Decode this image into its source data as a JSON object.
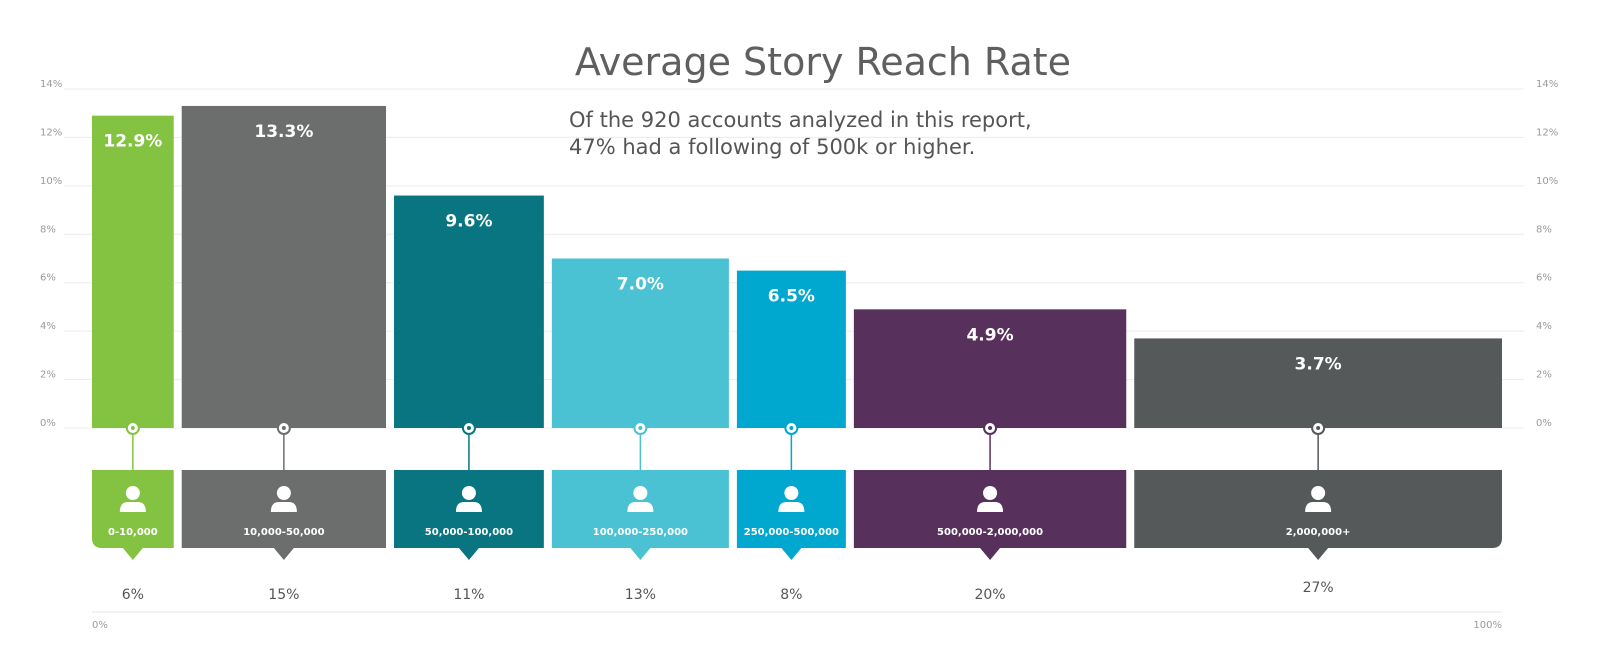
{
  "chart_data": {
    "type": "bar",
    "title": "Average Story Reach Rate",
    "subtitle_lines": [
      "Of the 920 accounts analyzed in this report,",
      "47% had a following of 500k or higher."
    ],
    "ylim": [
      0,
      14
    ],
    "y_ticks": [
      "0%",
      "2%",
      "4%",
      "6%",
      "8%",
      "10%",
      "12%",
      "14%"
    ],
    "x_axis_labels": [
      "0%",
      "100%"
    ],
    "categories": [
      "0-10,000",
      "10,000-50,000",
      "50,000-100,000",
      "100,000-250,000",
      "250,000-500,000",
      "500,000-2,000,000",
      "2,000,000+"
    ],
    "values": [
      12.9,
      13.3,
      9.6,
      7.0,
      6.5,
      4.9,
      3.7
    ],
    "value_labels": [
      "12.9%",
      "13.3%",
      "9.6%",
      "7.0%",
      "6.5%",
      "4.9%",
      "3.7%"
    ],
    "account_share": [
      6,
      15,
      11,
      13,
      8,
      20,
      27
    ],
    "account_share_labels": [
      "6%",
      "15%",
      "11%",
      "13%",
      "8%",
      "20%",
      "27%"
    ],
    "colors": [
      "#84c341",
      "#6c6e6d",
      "#087580",
      "#4ac2d4",
      "#00a7cf",
      "#58305c",
      "#55595a"
    ],
    "icon": "user-icon"
  }
}
